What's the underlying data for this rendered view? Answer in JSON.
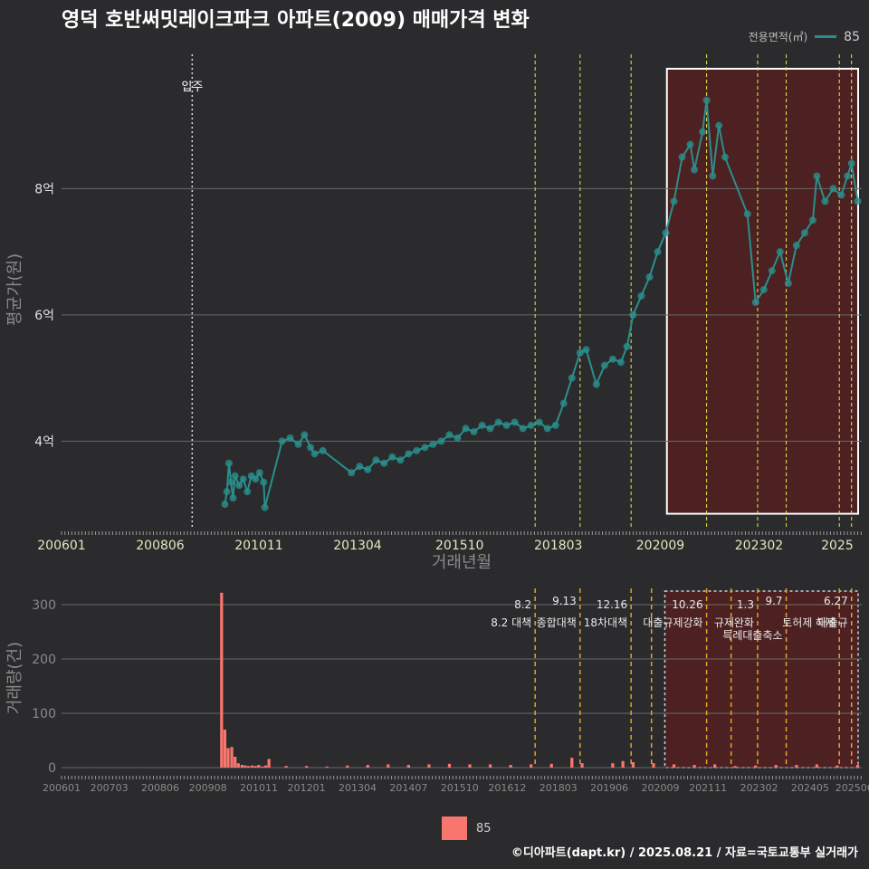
{
  "header": {
    "title": "영덕 호반써밋레이크파크 아파트(2009) 매매가격 변화",
    "legend_title": "전용면적(㎡)",
    "legend_value": "85"
  },
  "footer": {
    "credit": "©디아파트(dapt.kr) / 2025.08.21 / 자료=국토교통부 실거래가"
  },
  "bottom_legend": {
    "label": "85"
  },
  "colors": {
    "price": "#2a8f8c",
    "volume": "#f8766d",
    "policy_line": "#e8e84a",
    "policy_line_bottom": "#e2a227",
    "highlight": "#5a1f1f"
  },
  "chart_data": [
    {
      "type": "scatter",
      "title": "영덕 호반써밋레이크파크 아파트(2009) 매매가격 변화",
      "xlabel": "거래년월",
      "ylabel": "평균가(원)",
      "x_ticks": [
        "200601",
        "200806",
        "201011",
        "201304",
        "201510",
        "201803",
        "202009",
        "202302",
        "2025"
      ],
      "y_ticks": [
        {
          "value": 4,
          "label": "4억"
        },
        {
          "value": 6,
          "label": "6억"
        },
        {
          "value": 8,
          "label": "8억"
        }
      ],
      "ylim": [
        2.6,
        10.2
      ],
      "xlim": [
        2006.0,
        2025.6
      ],
      "annotation": {
        "label": "입주",
        "x": 2009.2
      },
      "policy_lines": [
        2017.6,
        2018.7,
        2019.95,
        2021.8,
        2023.05,
        2023.75,
        2025.05,
        2025.35
      ],
      "highlight_range": [
        2020.65,
        2025.6
      ],
      "legend": "top-right",
      "grid": true,
      "series": [
        {
          "name": "85",
          "points": [
            [
              2010.0,
              3.0
            ],
            [
              2010.05,
              3.2
            ],
            [
              2010.1,
              3.65
            ],
            [
              2010.15,
              3.35
            ],
            [
              2010.2,
              3.1
            ],
            [
              2010.25,
              3.45
            ],
            [
              2010.35,
              3.3
            ],
            [
              2010.45,
              3.4
            ],
            [
              2010.55,
              3.2
            ],
            [
              2010.65,
              3.45
            ],
            [
              2010.75,
              3.4
            ],
            [
              2010.85,
              3.5
            ],
            [
              2010.95,
              3.35
            ],
            [
              2010.98,
              2.95
            ],
            [
              2011.4,
              4.0
            ],
            [
              2011.6,
              4.05
            ],
            [
              2011.8,
              3.95
            ],
            [
              2011.95,
              4.1
            ],
            [
              2012.1,
              3.9
            ],
            [
              2012.2,
              3.8
            ],
            [
              2012.4,
              3.85
            ],
            [
              2013.1,
              3.5
            ],
            [
              2013.3,
              3.6
            ],
            [
              2013.5,
              3.55
            ],
            [
              2013.7,
              3.7
            ],
            [
              2013.9,
              3.65
            ],
            [
              2014.1,
              3.75
            ],
            [
              2014.3,
              3.7
            ],
            [
              2014.5,
              3.8
            ],
            [
              2014.7,
              3.85
            ],
            [
              2014.9,
              3.9
            ],
            [
              2015.1,
              3.95
            ],
            [
              2015.3,
              4.0
            ],
            [
              2015.5,
              4.1
            ],
            [
              2015.7,
              4.05
            ],
            [
              2015.9,
              4.2
            ],
            [
              2016.1,
              4.15
            ],
            [
              2016.3,
              4.25
            ],
            [
              2016.5,
              4.2
            ],
            [
              2016.7,
              4.3
            ],
            [
              2016.9,
              4.25
            ],
            [
              2017.1,
              4.3
            ],
            [
              2017.3,
              4.2
            ],
            [
              2017.5,
              4.25
            ],
            [
              2017.7,
              4.3
            ],
            [
              2017.9,
              4.2
            ],
            [
              2018.1,
              4.25
            ],
            [
              2018.3,
              4.6
            ],
            [
              2018.5,
              5.0
            ],
            [
              2018.7,
              5.4
            ],
            [
              2018.85,
              5.45
            ],
            [
              2019.1,
              4.9
            ],
            [
              2019.3,
              5.2
            ],
            [
              2019.5,
              5.3
            ],
            [
              2019.7,
              5.25
            ],
            [
              2019.85,
              5.5
            ],
            [
              2020.0,
              6.0
            ],
            [
              2020.2,
              6.3
            ],
            [
              2020.4,
              6.6
            ],
            [
              2020.6,
              7.0
            ],
            [
              2020.8,
              7.3
            ],
            [
              2021.0,
              7.8
            ],
            [
              2021.2,
              8.5
            ],
            [
              2021.4,
              8.7
            ],
            [
              2021.5,
              8.3
            ],
            [
              2021.7,
              8.9
            ],
            [
              2021.8,
              9.4
            ],
            [
              2021.95,
              8.2
            ],
            [
              2022.1,
              9.0
            ],
            [
              2022.25,
              8.5
            ],
            [
              2022.8,
              7.6
            ],
            [
              2023.0,
              6.2
            ],
            [
              2023.2,
              6.4
            ],
            [
              2023.4,
              6.7
            ],
            [
              2023.6,
              7.0
            ],
            [
              2023.8,
              6.5
            ],
            [
              2024.0,
              7.1
            ],
            [
              2024.2,
              7.3
            ],
            [
              2024.4,
              7.5
            ],
            [
              2024.5,
              8.2
            ],
            [
              2024.7,
              7.8
            ],
            [
              2024.9,
              8.0
            ],
            [
              2025.1,
              7.9
            ],
            [
              2025.25,
              8.2
            ],
            [
              2025.35,
              8.4
            ],
            [
              2025.5,
              7.8
            ]
          ]
        }
      ]
    },
    {
      "type": "bar",
      "xlabel": "",
      "ylabel": "거래량(건)",
      "x_ticks": [
        "200601",
        "200703",
        "200806",
        "200908",
        "201011",
        "201201",
        "201304",
        "201407",
        "201510",
        "201612",
        "201803",
        "201906",
        "202009",
        "202111",
        "202302",
        "202405",
        "202506"
      ],
      "y_ticks": [
        0,
        100,
        200,
        300
      ],
      "ylim": [
        0,
        330
      ],
      "xlim": [
        2006.0,
        2025.6
      ],
      "policy_lines": [
        {
          "x": 2017.6,
          "date": "8.2",
          "label": "8.2 대책"
        },
        {
          "x": 2018.7,
          "date": "9.13",
          "label": "종합대책"
        },
        {
          "x": 2019.95,
          "date": "12.16",
          "label": "18차대책"
        },
        {
          "x": 2020.45,
          "date": "",
          "label": ""
        },
        {
          "x": 2021.8,
          "date": "10.26",
          "label": "대출규제강화"
        },
        {
          "x": 2022.4,
          "date": "",
          "label": ""
        },
        {
          "x": 2023.05,
          "date": "1.3",
          "label": "규제완화"
        },
        {
          "x": 2023.75,
          "date": "9.7",
          "label": "특례대출축소"
        },
        {
          "x": 2025.05,
          "date": "",
          "label": "토허제 해제"
        },
        {
          "x": 2025.35,
          "date": "6.27",
          "label": "대출규"
        }
      ],
      "highlight_range": [
        2020.6,
        2025.6
      ],
      "series": [
        {
          "name": "85",
          "points": [
            [
              2009.92,
              322
            ],
            [
              2010.0,
              70
            ],
            [
              2010.08,
              36
            ],
            [
              2010.17,
              38
            ],
            [
              2010.25,
              20
            ],
            [
              2010.33,
              8
            ],
            [
              2010.42,
              5
            ],
            [
              2010.5,
              4
            ],
            [
              2010.58,
              3
            ],
            [
              2010.67,
              4
            ],
            [
              2010.75,
              3
            ],
            [
              2010.83,
              5
            ],
            [
              2010.92,
              2
            ],
            [
              2011.0,
              4
            ],
            [
              2011.08,
              16
            ],
            [
              2011.5,
              3
            ],
            [
              2012.0,
              3
            ],
            [
              2012.5,
              2
            ],
            [
              2013.0,
              4
            ],
            [
              2013.5,
              5
            ],
            [
              2014.0,
              6
            ],
            [
              2014.5,
              5
            ],
            [
              2015.0,
              6
            ],
            [
              2015.5,
              7
            ],
            [
              2016.0,
              6
            ],
            [
              2016.5,
              6
            ],
            [
              2017.0,
              5
            ],
            [
              2017.5,
              6
            ],
            [
              2018.0,
              7
            ],
            [
              2018.5,
              18
            ],
            [
              2018.75,
              8
            ],
            [
              2019.5,
              8
            ],
            [
              2019.75,
              12
            ],
            [
              2020.0,
              10
            ],
            [
              2020.5,
              8
            ],
            [
              2021.0,
              6
            ],
            [
              2021.5,
              5
            ],
            [
              2022.0,
              6
            ],
            [
              2022.5,
              3
            ],
            [
              2023.0,
              4
            ],
            [
              2023.5,
              5
            ],
            [
              2024.0,
              5
            ],
            [
              2024.5,
              6
            ],
            [
              2025.0,
              4
            ],
            [
              2025.5,
              5
            ]
          ]
        }
      ]
    }
  ]
}
